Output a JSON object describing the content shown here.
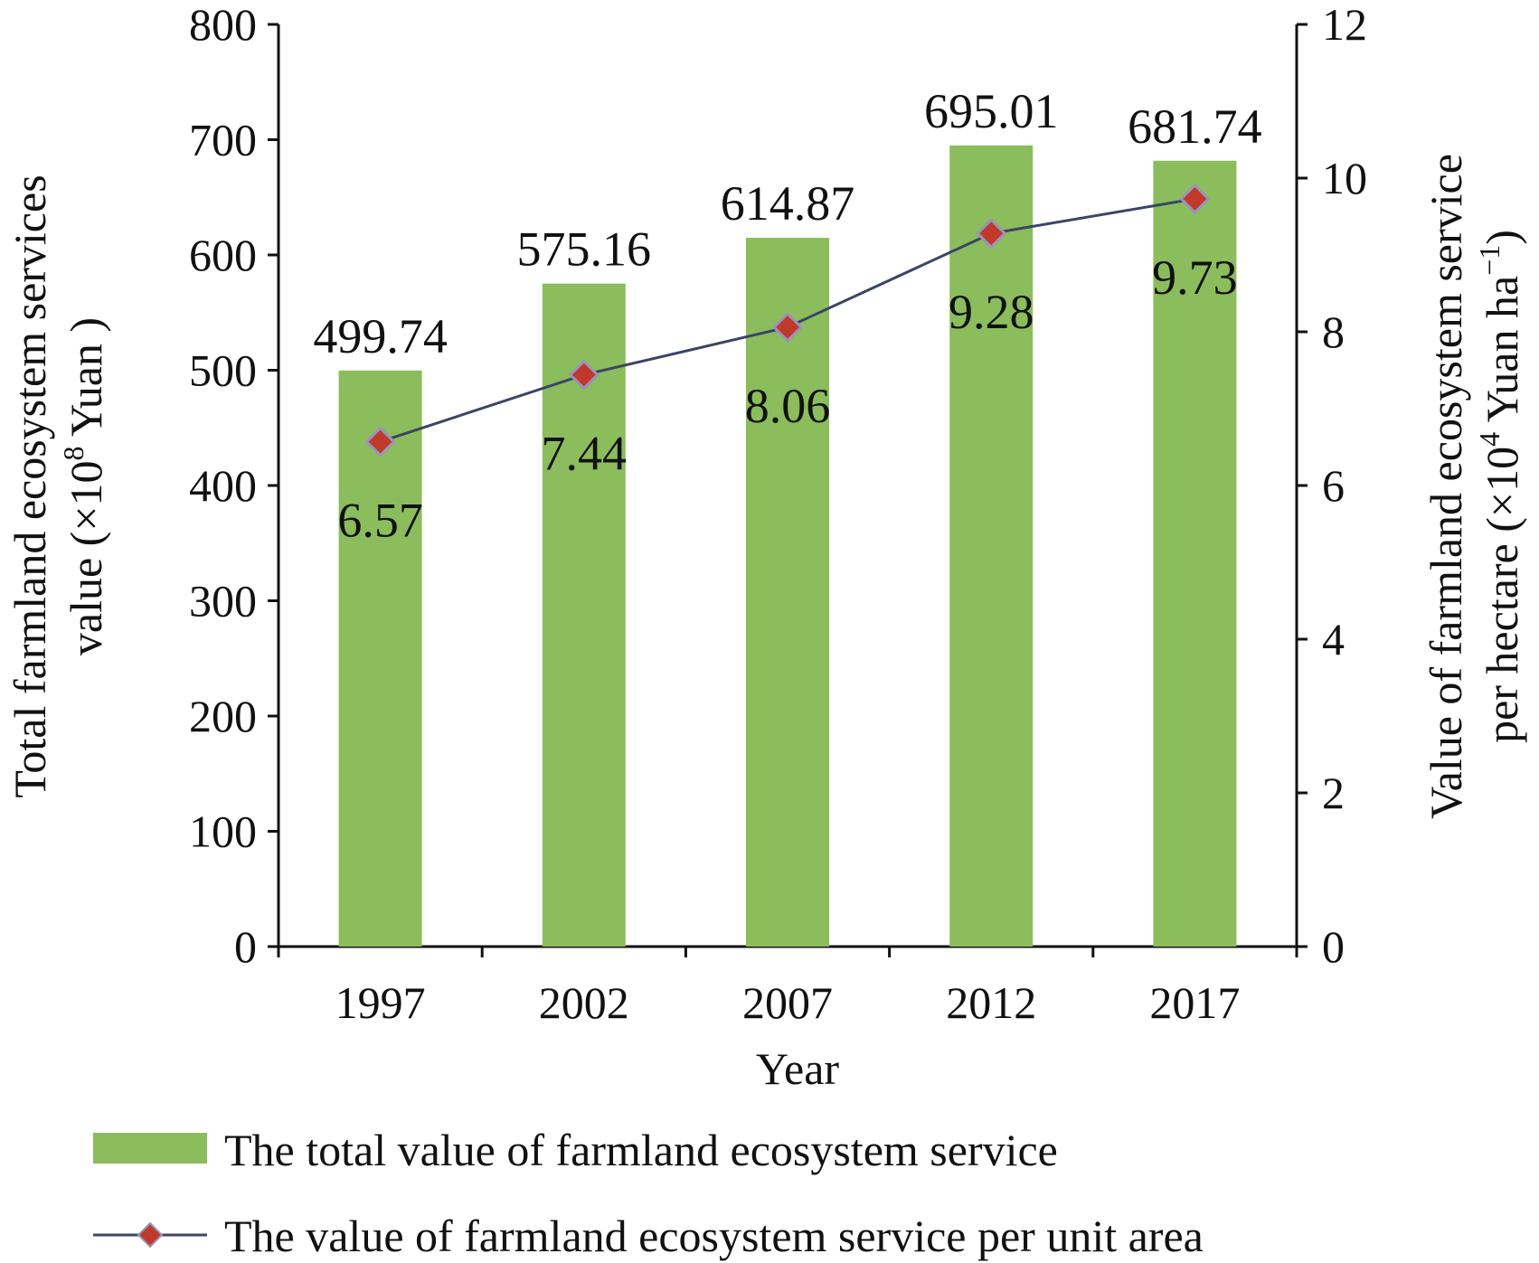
{
  "chart_data": {
    "type": "bar+line",
    "x": {
      "label": "Year",
      "categories": [
        "1997",
        "2002",
        "2007",
        "2012",
        "2017"
      ]
    },
    "y_left": {
      "label_line1": "Total farmland ecosystem services",
      "label_line2_pre": "value (×10",
      "label_line2_sup": "8",
      "label_line2_post": " Yuan )",
      "ticks": [
        "0",
        "100",
        "200",
        "300",
        "400",
        "500",
        "600",
        "700",
        "800"
      ],
      "range": [
        0,
        800
      ]
    },
    "y_right": {
      "label_line1": "Value of farmland ecosystem service",
      "label_line2_pre": "per hectare (×10",
      "label_line2_sup1": "4",
      "label_line2_mid": " Yuan ha",
      "label_line2_sup2": "−1",
      "label_line2_post": ")",
      "ticks": [
        "0",
        "2",
        "4",
        "6",
        "8",
        "10",
        "12"
      ],
      "range": [
        0,
        12
      ]
    },
    "series": [
      {
        "name": "The total value of farmland ecosystem service",
        "type": "bar",
        "axis": "left",
        "color": "#8bbd5c",
        "values": [
          499.74,
          575.16,
          614.87,
          695.01,
          681.74
        ],
        "labels": [
          "499.74",
          "575.16",
          "614.87",
          "695.01",
          "681.74"
        ]
      },
      {
        "name": "The value of farmland ecosystem service per unit area",
        "type": "line",
        "axis": "right",
        "line_color": "#3c4466",
        "marker_color": "#c0392b",
        "marker": "diamond",
        "values": [
          6.57,
          7.44,
          8.06,
          9.28,
          9.73
        ],
        "labels": [
          "6.57",
          "7.44",
          "8.06",
          "9.28",
          "9.73"
        ]
      }
    ],
    "grid": false,
    "legend_position": "bottom"
  }
}
